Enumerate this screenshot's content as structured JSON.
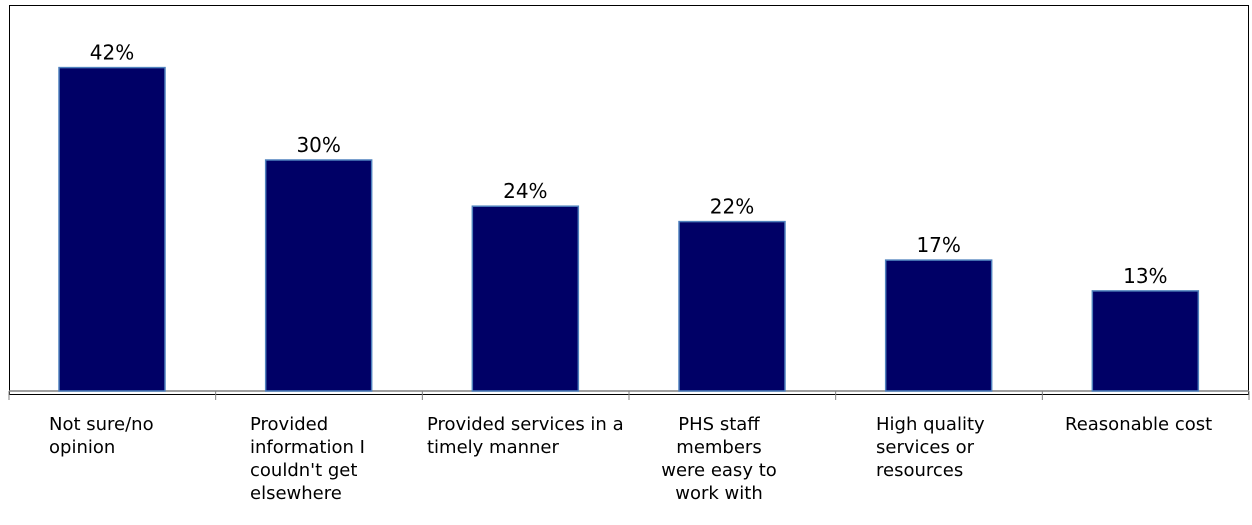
{
  "chart_data": {
    "type": "bar",
    "categories": [
      "Not sure/no opinion",
      "Provided information I couldn't get elsewhere",
      "Provided services in a timely manner",
      "PHS staff members were easy to work with",
      "High quality services or resources",
      "Reasonable cost"
    ],
    "values": [
      42,
      30,
      24,
      22,
      17,
      13
    ],
    "data_labels": [
      "42%",
      "30%",
      "24%",
      "22%",
      "17%",
      "13%"
    ],
    "title": "",
    "xlabel": "",
    "ylabel": "",
    "ylim": [
      0,
      46
    ],
    "grid": false,
    "legend": "none",
    "bar_color": "#000066",
    "bar_edge_color": "#4f81bd"
  }
}
